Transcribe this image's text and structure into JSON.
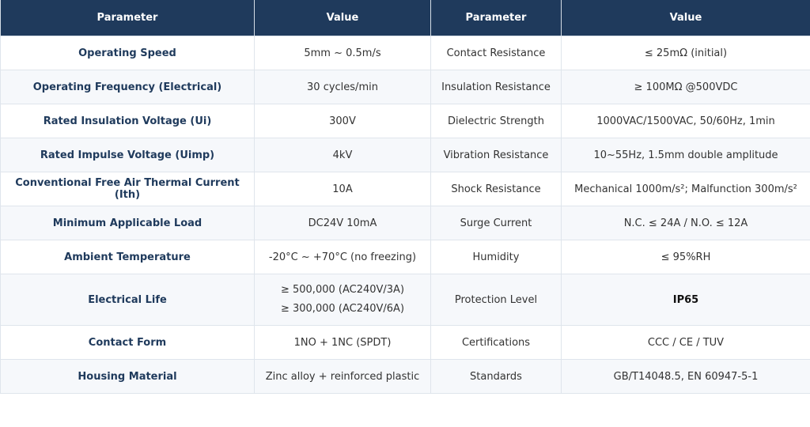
{
  "table": {
    "headers": [
      "Parameter",
      "Value",
      "Parameter",
      "Value"
    ],
    "rows": [
      [
        "Operating Speed",
        "5mm ~ 0.5m/s",
        "Contact Resistance",
        "≤ 25mΩ (initial)"
      ],
      [
        "Operating Frequency (Electrical)",
        "30 cycles/min",
        "Insulation Resistance",
        "≥ 100MΩ @500VDC"
      ],
      [
        "Rated Insulation Voltage (Ui)",
        "300V",
        "Dielectric Strength",
        "1000VAC/1500VAC, 50/60Hz, 1min"
      ],
      [
        "Rated Impulse Voltage (Uimp)",
        "4kV",
        "Vibration Resistance",
        "10~55Hz, 1.5mm double amplitude"
      ],
      [
        "Conventional Free Air Thermal Current (Ith)",
        "10A",
        "Shock Resistance",
        "Mechanical 1000m/s²; Malfunction 300m/s²"
      ],
      [
        "Minimum Applicable Load",
        "DC24V 10mA",
        "Surge Current",
        "N.C. ≤ 24A / N.O. ≤ 12A"
      ],
      [
        "Ambient Temperature",
        "-20°C ~ +70°C (no freezing)",
        "Humidity",
        "≤ 95%RH"
      ],
      [
        "Electrical Life",
        [
          "≥ 500,000 (AC240V/3A)",
          "≥ 300,000 (AC240V/6A)"
        ],
        "Protection Level",
        "IP65"
      ],
      [
        "Contact Form",
        "1NO + 1NC (SPDT)",
        "Certifications",
        "CCC / CE / TUV"
      ],
      [
        "Housing Material",
        "Zinc alloy + reinforced plastic",
        "Standards",
        "GB/T14048.5, EN 60947-5-1"
      ]
    ]
  }
}
